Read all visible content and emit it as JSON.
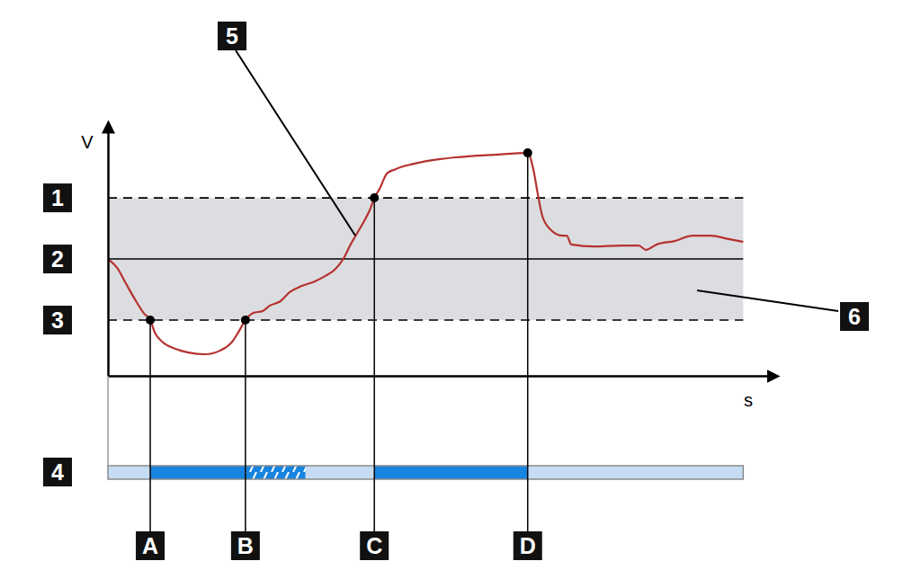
{
  "chart_data": {
    "type": "line",
    "x_label": "s",
    "y_label": "V",
    "xlim": [
      0,
      100
    ],
    "ylim": [
      0,
      100
    ],
    "tick_labels": false,
    "grid": false,
    "x": [
      0,
      1.4,
      2.7,
      4.1,
      5.4,
      6.4,
      7.1,
      8.2,
      10.2,
      12.2,
      14.7,
      17.0,
      18.8,
      19.7,
      20.8,
      22.0,
      23.4,
      24.5,
      26.1,
      27.5,
      29.3,
      31.3,
      32.9,
      34.3,
      35.6,
      36.7,
      37.8,
      38.9,
      39.7,
      40.3,
      41.1,
      42.2,
      43.5,
      46.3,
      50.3,
      54.4,
      58.5,
      63.5,
      64.4,
      65.0,
      65.7,
      66.9,
      68.7,
      69.4,
      70.1,
      73.5,
      77.6,
      80.3,
      81.4,
      83.0,
      85.7,
      88.4,
      91.2,
      93.9,
      96.1
    ],
    "series": [
      {
        "name": "5",
        "color": "#b5322f",
        "line_style": "solid",
        "values": [
          47.6,
          44.0,
          37.7,
          31.1,
          25.6,
          22.7,
          17.6,
          13.9,
          11.0,
          9.5,
          8.8,
          10.3,
          13.9,
          17.6,
          22.7,
          25.6,
          26.4,
          28.6,
          30.4,
          34.1,
          36.6,
          38.5,
          40.7,
          43.2,
          47.6,
          53.5,
          58.6,
          63.7,
          68.1,
          72.5,
          76.2,
          82.4,
          84.2,
          86.4,
          88.3,
          89.4,
          90.1,
          90.8,
          83.5,
          74.4,
          65.2,
          59.7,
          57.1,
          57.1,
          53.5,
          52.7,
          53.1,
          53.1,
          51.3,
          53.5,
          54.9,
          57.1,
          57.1,
          55.7,
          54.6
        ]
      }
    ],
    "thresholds": [
      {
        "label": "1",
        "value": 72.5,
        "line_style": "dashed"
      },
      {
        "label": "2",
        "value": 47.6,
        "line_style": "solid"
      },
      {
        "label": "3",
        "value": 22.7,
        "line_style": "dashed"
      }
    ],
    "band": {
      "label": "6",
      "from": 22.7,
      "to": 72.5,
      "color": "#dcdde0"
    },
    "points": [
      {
        "label": "A",
        "x": 6.4,
        "y": 22.7
      },
      {
        "label": "B",
        "x": 20.8,
        "y": 22.7
      },
      {
        "label": "C",
        "x": 40.3,
        "y": 72.5
      },
      {
        "label": "D",
        "x": 63.5,
        "y": 90.8
      }
    ],
    "timeline": {
      "label": "4",
      "segments": [
        {
          "from": 0,
          "to": 6.4,
          "color": "#c6dcf4"
        },
        {
          "from": 6.4,
          "to": 20.8,
          "color": "#1784df"
        },
        {
          "from": 20.8,
          "to": 29.9,
          "color": "#1784df",
          "line_style": "hatched"
        },
        {
          "from": 29.9,
          "to": 40.3,
          "color": "#c6dcf4"
        },
        {
          "from": 40.3,
          "to": 63.5,
          "color": "#1784df"
        },
        {
          "from": 63.5,
          "to": 96.1,
          "color": "#c6dcf4"
        }
      ]
    }
  }
}
